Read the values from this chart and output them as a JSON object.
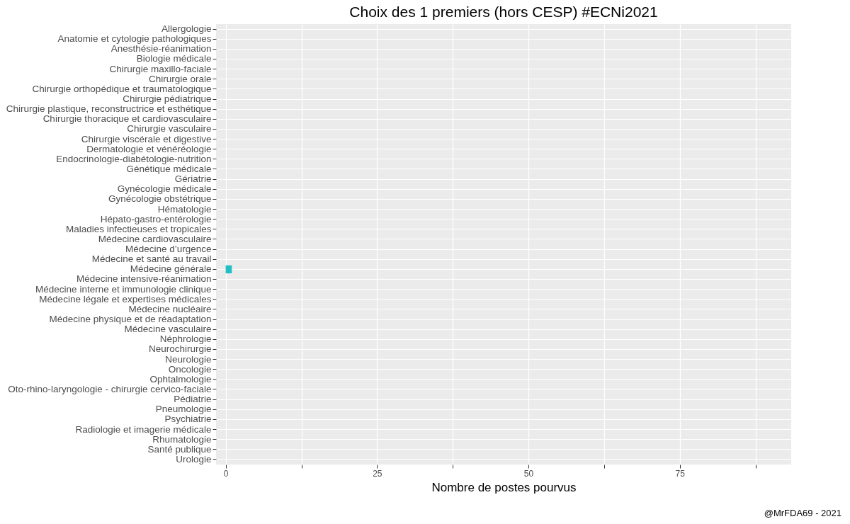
{
  "chart_data": {
    "type": "bar",
    "orientation": "horizontal",
    "title": "Choix des 1 premiers (hors CESP) #ECNi2021",
    "xlabel": "Nombre de postes pourvus",
    "categories": [
      "Allergologie",
      "Anatomie et cytologie pathologiques",
      "Anesthésie-réanimation",
      "Biologie médicale",
      "Chirurgie maxillo-faciale",
      "Chirurgie orale",
      "Chirurgie orthopédique et traumatologique",
      "Chirurgie pédiatrique",
      "Chirurgie plastique, reconstructrice et esthétique",
      "Chirurgie thoracique et cardiovasculaire",
      "Chirurgie vasculaire",
      "Chirurgie viscérale et digestive",
      "Dermatologie et vénéréologie",
      "Endocrinologie-diabétologie-nutrition",
      "Génétique médicale",
      "Gériatrie",
      "Gynécologie médicale",
      "Gynécologie obstétrique",
      "Hématologie",
      "Hépato-gastro-entérologie",
      "Maladies infectieuses et tropicales",
      "Médecine cardiovasculaire",
      "Médecine d’urgence",
      "Médecine et santé au travail",
      "Médecine générale",
      "Médecine intensive-réanimation",
      "Médecine interne et immunologie clinique",
      "Médecine légale et expertises médicales",
      "Médecine nucléaire",
      "Médecine physique et de réadaptation",
      "Médecine vasculaire",
      "Néphrologie",
      "Neurochirurgie",
      "Neurologie",
      "Oncologie",
      "Ophtalmologie",
      "Oto-rhino-laryngologie - chirurgie cervico-faciale",
      "Pédiatrie",
      "Pneumologie",
      "Psychiatrie",
      "Radiologie et imagerie médicale",
      "Rhumatologie",
      "Santé publique",
      "Urologie"
    ],
    "values": [
      0,
      0,
      0,
      0,
      0,
      0,
      0,
      0,
      0,
      0,
      0,
      0,
      0,
      0,
      0,
      0,
      0,
      0,
      0,
      0,
      0,
      0,
      0,
      0,
      1,
      0,
      0,
      0,
      0,
      0,
      0,
      0,
      0,
      0,
      0,
      0,
      0,
      0,
      0,
      0,
      0,
      0,
      0,
      0
    ],
    "color": "#1fbfc4",
    "xlim": [
      -1.6,
      93.4
    ],
    "xticks": [
      0,
      {
        "value": 12.5,
        "label": null
      },
      25,
      {
        "value": 37.5,
        "label": null
      },
      50,
      {
        "value": 62.5,
        "label": null
      },
      75,
      {
        "value": 87.5,
        "label": null
      }
    ],
    "grid": true,
    "annotations": [
      "@MrFDA69 - 2021"
    ]
  }
}
